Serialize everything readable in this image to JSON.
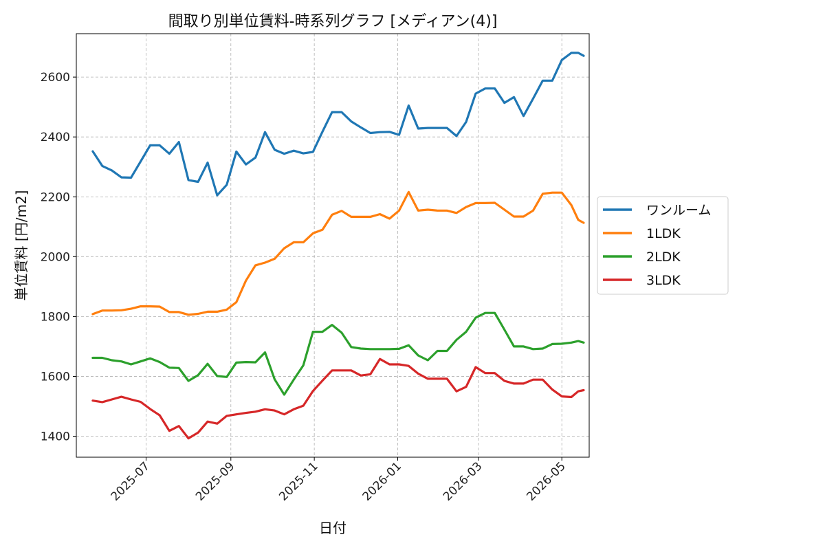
{
  "chart_data": {
    "type": "line",
    "title": "間取り別単位賃料-時系列グラフ [メディアン(4)]",
    "xlabel": "日付",
    "ylabel": "単位賃料 [円/m2]",
    "x_ticks": [
      "2025-07",
      "2025-09",
      "2025-11",
      "2026-01",
      "2026-03",
      "2026-05"
    ],
    "y_ticks": [
      "1400",
      "1600",
      "1800",
      "2000",
      "2200",
      "2400",
      "2600"
    ],
    "xlim": [
      "2025-05-11",
      "2026-05-21"
    ],
    "ylim": [
      1330,
      2745
    ],
    "grid": true,
    "legend_position": "right-outside",
    "x": [
      "2025-05-23",
      "2025-05-30",
      "2025-06-06",
      "2025-06-13",
      "2025-06-20",
      "2025-06-27",
      "2025-07-04",
      "2025-07-11",
      "2025-07-18",
      "2025-07-25",
      "2025-08-01",
      "2025-08-08",
      "2025-08-15",
      "2025-08-22",
      "2025-08-29",
      "2025-09-05",
      "2025-09-12",
      "2025-09-19",
      "2025-09-26",
      "2025-10-03",
      "2025-10-10",
      "2025-10-17",
      "2025-10-24",
      "2025-10-31",
      "2025-11-07",
      "2025-11-14",
      "2025-11-21",
      "2025-11-28",
      "2025-12-05",
      "2025-12-12",
      "2025-12-19",
      "2025-12-26",
      "2026-01-02",
      "2026-01-09",
      "2026-01-16",
      "2026-01-23",
      "2026-01-30",
      "2026-02-06",
      "2026-02-13",
      "2026-02-20",
      "2026-02-27",
      "2026-03-06",
      "2026-03-13",
      "2026-03-20",
      "2026-03-27",
      "2026-04-03",
      "2026-04-10",
      "2026-04-17",
      "2026-04-24",
      "2026-05-01",
      "2026-05-08",
      "2026-05-13",
      "2026-05-17"
    ],
    "series": [
      {
        "name": "ワンルーム",
        "color": "#1f77b4",
        "values": [
          2352,
          2303,
          2288,
          2265,
          2264,
          2318,
          2372,
          2372,
          2344,
          2383,
          2256,
          2250,
          2314,
          2205,
          2240,
          2351,
          2308,
          2331,
          2416,
          2357,
          2344,
          2354,
          2345,
          2350,
          2418,
          2483,
          2483,
          2452,
          2432,
          2413,
          2416,
          2417,
          2407,
          2505,
          2428,
          2430,
          2430,
          2430,
          2403,
          2450,
          2545,
          2562,
          2562,
          2514,
          2533,
          2470,
          2528,
          2588,
          2588,
          2657,
          2681,
          2681,
          2671
        ]
      },
      {
        "name": "1LDK",
        "color": "#ff7f0e",
        "values": [
          1808,
          1820,
          1820,
          1821,
          1826,
          1834,
          1834,
          1833,
          1815,
          1815,
          1806,
          1809,
          1816,
          1816,
          1823,
          1848,
          1920,
          1971,
          1980,
          1993,
          2028,
          2048,
          2048,
          2078,
          2090,
          2140,
          2153,
          2133,
          2133,
          2133,
          2142,
          2127,
          2154,
          2216,
          2154,
          2157,
          2154,
          2154,
          2146,
          2166,
          2179,
          2179,
          2180,
          2157,
          2134,
          2134,
          2154,
          2210,
          2214,
          2214,
          2172,
          2123,
          2113
        ]
      },
      {
        "name": "2LDK",
        "color": "#2ca02c",
        "values": [
          1662,
          1662,
          1654,
          1650,
          1640,
          1650,
          1660,
          1648,
          1629,
          1628,
          1585,
          1604,
          1642,
          1601,
          1598,
          1646,
          1648,
          1647,
          1680,
          1590,
          1539,
          1589,
          1637,
          1749,
          1749,
          1772,
          1746,
          1698,
          1693,
          1691,
          1691,
          1691,
          1692,
          1704,
          1670,
          1654,
          1685,
          1685,
          1722,
          1749,
          1796,
          1812,
          1812,
          1756,
          1700,
          1700,
          1691,
          1693,
          1708,
          1709,
          1713,
          1718,
          1713
        ]
      },
      {
        "name": "3LDK",
        "color": "#d62728",
        "values": [
          1519,
          1514,
          1523,
          1532,
          1523,
          1515,
          1491,
          1470,
          1418,
          1434,
          1393,
          1412,
          1449,
          1442,
          1468,
          1473,
          1478,
          1482,
          1490,
          1486,
          1473,
          1490,
          1502,
          1551,
          1586,
          1620,
          1620,
          1620,
          1603,
          1607,
          1658,
          1640,
          1640,
          1635,
          1609,
          1592,
          1592,
          1592,
          1550,
          1565,
          1631,
          1611,
          1611,
          1585,
          1576,
          1576,
          1589,
          1589,
          1556,
          1533,
          1531,
          1550,
          1554
        ]
      }
    ]
  }
}
